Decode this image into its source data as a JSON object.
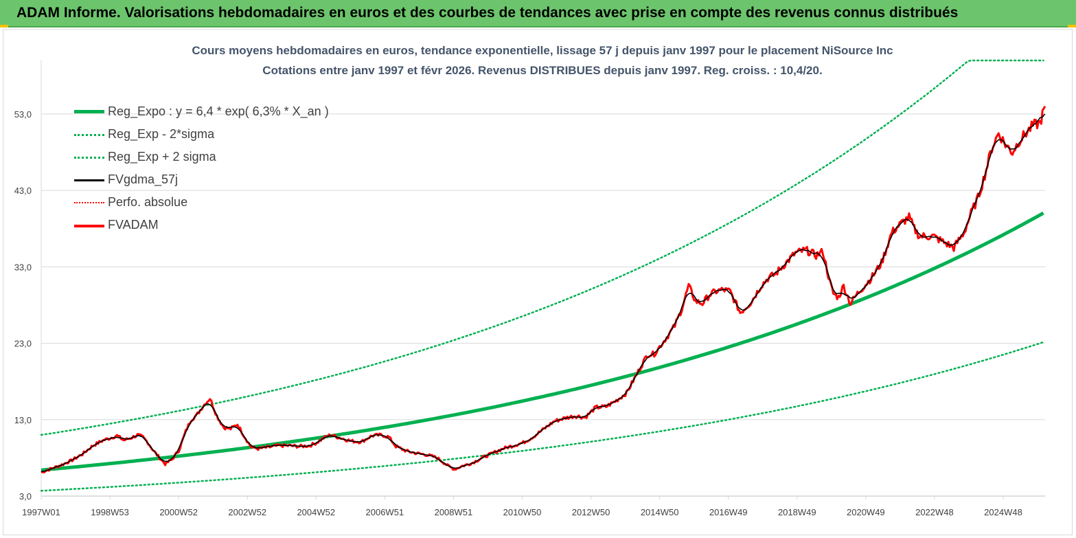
{
  "banner": {
    "title": "ADAM Informe. Valorisations hebdomadaires en euros et des courbes de tendances avec prise en compte des revenus connus distribués"
  },
  "chart": {
    "title_line1": "Cours moyens hebdomadaires en euros, tendance exponentielle, lissage 57 j depuis janv 1997 pour le placement NiSource Inc",
    "title_line2": "Cotations entre janv 1997 et févr 2026. Revenus DISTRIBUES depuis janv 1997. Reg. croiss. : 10,4/20."
  },
  "colors": {
    "green": "#00b050",
    "black": "#000000",
    "red": "#ff0000",
    "grid": "#d9d9d9",
    "axis_text": "#404040",
    "banner": "#6cc56c"
  },
  "chart_data": {
    "type": "line",
    "title": "Cours moyens hebdomadaires en euros, tendance exponentielle, lissage 57 j depuis janv 1997 pour le placement NiSource Inc",
    "subtitle": "Cotations entre janv 1997 et févr 2026. Revenus DISTRIBUES depuis janv 1997. Reg. croiss. : 10,4/20.",
    "xlabel": "",
    "ylabel": "",
    "x_ticks": [
      "1997W01",
      "1998W53",
      "2000W52",
      "2002W52",
      "2004W52",
      "2006W51",
      "2008W51",
      "2010W50",
      "2012W50",
      "2014W50",
      "2016W49",
      "2018W49",
      "2020W49",
      "2022W48",
      "2024W48"
    ],
    "x_range_years": [
      1997.0,
      2026.15
    ],
    "y_ticks": [
      "3,0",
      "13,0",
      "23,0",
      "33,0",
      "43,0",
      "53,0"
    ],
    "ylim": [
      3,
      60
    ],
    "grid": true,
    "legend_position": "top-left",
    "series": [
      {
        "name": "Reg_Expo : y = 6,4 * exp( 6,3% *  X_an )",
        "style": "solid-thick",
        "color": "#00b050",
        "function": "6.4*exp(0.063*t)"
      },
      {
        "name": "Reg_Exp - 2*sigma",
        "style": "dotted",
        "color": "#00b050",
        "function": "3.7*exp(0.063*t)"
      },
      {
        "name": "Reg_Exp + 2 sigma",
        "style": "dotted",
        "color": "#00b050",
        "function": "11*exp(0.063*t)",
        "clip_max": 60
      },
      {
        "name": "FVgdma_57j",
        "style": "solid",
        "color": "#000000",
        "derived_from": "FVADAM",
        "smoothing": "moving-average"
      },
      {
        "name": "Perfo. absolue",
        "style": "dotted",
        "color": "#ff0000",
        "values": []
      },
      {
        "name": "FVADAM",
        "style": "solid-thick",
        "color": "#ff0000",
        "x": [
          1997.0,
          1997.3,
          1997.6,
          1997.9,
          1998.2,
          1998.5,
          1998.8,
          1999.0,
          1999.2,
          1999.4,
          1999.6,
          1999.8,
          1999.95,
          2000.1,
          2000.25,
          2000.4,
          2000.6,
          2000.8,
          2001.0,
          2001.2,
          2001.35,
          2001.5,
          2001.7,
          2001.9,
          2002.1,
          2002.3,
          2002.5,
          2002.7,
          2002.9,
          2003.1,
          2003.3,
          2003.6,
          2003.9,
          2004.2,
          2004.5,
          2004.8,
          2005.0,
          2005.2,
          2005.4,
          2005.7,
          2006.0,
          2006.3,
          2006.6,
          2006.9,
          2007.1,
          2007.3,
          2007.6,
          2007.9,
          2008.2,
          2008.5,
          2008.8,
          2009.0,
          2009.2,
          2009.5,
          2009.8,
          2010.1,
          2010.4,
          2010.7,
          2011.0,
          2011.3,
          2011.6,
          2011.9,
          2012.2,
          2012.5,
          2012.8,
          2013.1,
          2013.4,
          2013.7,
          2014.0,
          2014.3,
          2014.6,
          2014.8,
          2015.0,
          2015.2,
          2015.4,
          2015.6,
          2015.8,
          2016.0,
          2016.2,
          2016.4,
          2016.6,
          2016.8,
          2017.0,
          2017.3,
          2017.6,
          2017.9,
          2018.1,
          2018.3,
          2018.6,
          2018.9,
          2019.2,
          2019.5,
          2019.7,
          2019.9,
          2020.0,
          2020.15,
          2020.3,
          2020.5,
          2020.7,
          2020.9,
          2021.1,
          2021.4,
          2021.7,
          2022.0,
          2022.2,
          2022.35,
          2022.5,
          2022.7,
          2022.9,
          2023.1,
          2023.3,
          2023.5,
          2023.6,
          2023.8,
          2024.0,
          2024.2,
          2024.4,
          2024.6,
          2024.8,
          2025.0,
          2025.2,
          2025.4,
          2025.6,
          2025.8,
          2026.0,
          2026.15
        ],
        "values": [
          6.1,
          6.6,
          7.1,
          7.7,
          8.5,
          9.6,
          10.3,
          10.6,
          10.9,
          10.3,
          10.6,
          11.0,
          10.7,
          10.0,
          9.0,
          8.2,
          7.2,
          7.8,
          9.0,
          11.5,
          13.0,
          13.5,
          14.8,
          15.8,
          13.5,
          12.0,
          11.8,
          12.4,
          10.8,
          9.4,
          9.2,
          9.4,
          9.6,
          9.6,
          9.5,
          9.6,
          10.0,
          10.6,
          11.0,
          10.6,
          10.2,
          10.1,
          10.9,
          11.0,
          10.7,
          9.5,
          8.9,
          8.6,
          8.4,
          8.0,
          7.0,
          6.5,
          6.9,
          7.3,
          8.0,
          8.6,
          9.2,
          9.6,
          10.0,
          10.8,
          11.8,
          12.8,
          13.2,
          13.5,
          13.3,
          14.6,
          14.7,
          15.5,
          16.5,
          19.0,
          21.5,
          21.6,
          22.8,
          24.0,
          25.3,
          27.5,
          30.5,
          28.5,
          28.2,
          29.3,
          29.8,
          30.0,
          29.8,
          27.0,
          28.3,
          30.5,
          31.5,
          32.0,
          33.4,
          34.8,
          35.2,
          34.5,
          35.0,
          31.0,
          29.5,
          29.0,
          30.5,
          28.2,
          29.5,
          30.5,
          31.5,
          33.5,
          37.5,
          38.8,
          39.5,
          38.0,
          37.0,
          37.0,
          37.0,
          36.5,
          36.0,
          35.5,
          36.2,
          37.5,
          40.0,
          42.0,
          45.0,
          48.5,
          50.5,
          49.0,
          48.0,
          49.5,
          50.5,
          51.5,
          51.8,
          54.0
        ]
      }
    ]
  },
  "legend": [
    {
      "label": "Reg_Expo : y = 6,4 * exp( 6,3% *  X_an )"
    },
    {
      "label": "Reg_Exp - 2*sigma"
    },
    {
      "label": "Reg_Exp + 2 sigma"
    },
    {
      "label": "FVgdma_57j"
    },
    {
      "label": "Perfo. absolue"
    },
    {
      "label": "FVADAM"
    }
  ]
}
